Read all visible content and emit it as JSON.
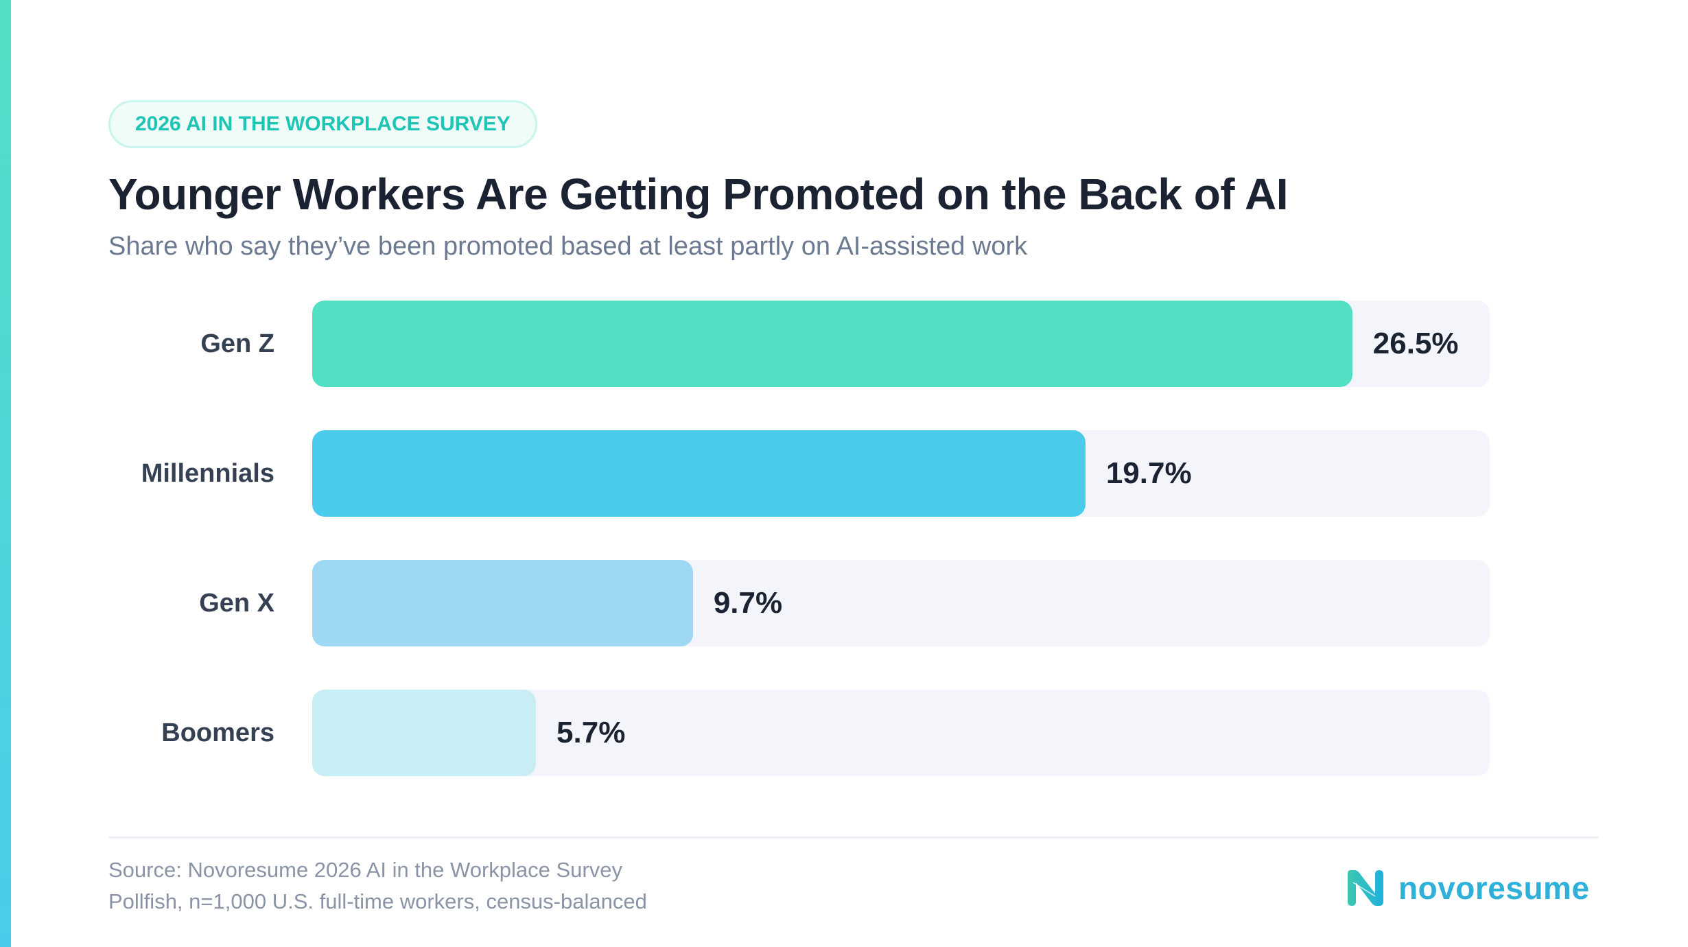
{
  "badge": "2026 AI IN THE WORKPLACE SURVEY",
  "chart_data": {
    "type": "bar",
    "orientation": "horizontal",
    "title": "Younger Workers Are Getting Promoted on the Back of AI",
    "subtitle": "Share who say they’ve been promoted based at least partly on AI-assisted work",
    "categories": [
      "Gen Z",
      "Millennials",
      "Gen X",
      "Boomers"
    ],
    "values": [
      26.5,
      19.7,
      9.7,
      5.7
    ],
    "value_labels": [
      "26.5%",
      "19.7%",
      "9.7%",
      "5.7%"
    ],
    "colors": [
      "#52E0C4",
      "#4ACBEB",
      "#9ED8F5",
      "#C8EDF5"
    ],
    "unit": "%",
    "xlim": [
      0,
      30
    ],
    "grid": false,
    "xlabel": "",
    "ylabel": ""
  },
  "footer": {
    "source_line1": "Source: Novoresume 2026 AI in the Workplace Survey",
    "source_line2": "Pollfish, n=1,000 U.S. full-time workers, census-balanced",
    "logo_text": "novoresume"
  },
  "colors": {
    "accent": "#52E0C4",
    "track": "#F4F5FA",
    "badge_text": "#1EC4B4",
    "brand": "#2EB0D8"
  }
}
